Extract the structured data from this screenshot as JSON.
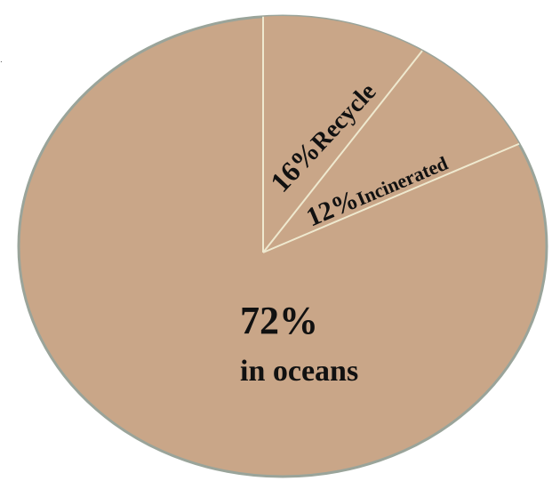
{
  "chart_data": {
    "type": "pie",
    "slices": [
      {
        "value_label": "72%",
        "category_label": "in oceans",
        "value": 72
      },
      {
        "value_label": "16%",
        "category_label": "Recycle",
        "value": 16
      },
      {
        "value_label": "12%",
        "category_label": "Incinerated",
        "value": 12
      }
    ],
    "title": "",
    "legend": "none",
    "colors": {
      "fill": "#c9a688",
      "edge": "#9aa49a",
      "divider": "#efe9cf"
    }
  }
}
